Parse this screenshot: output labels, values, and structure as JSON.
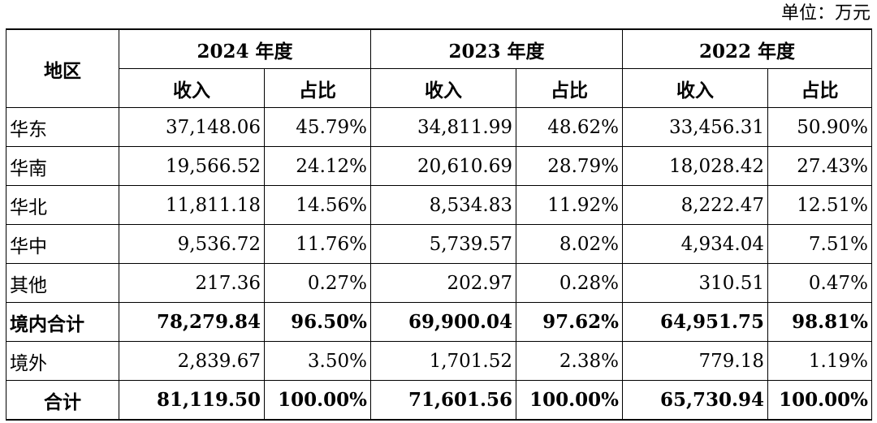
{
  "unit_label": "单位：万元",
  "header": {
    "region": "地区",
    "years": [
      "2024 年度",
      "2023 年度",
      "2022 年度"
    ],
    "revenue": "收入",
    "ratio": "占比"
  },
  "rows": [
    {
      "region": "华东",
      "cells": [
        "37,148.06",
        "45.79%",
        "34,811.99",
        "48.62%",
        "33,456.31",
        "50.90%"
      ]
    },
    {
      "region": "华南",
      "cells": [
        "19,566.52",
        "24.12%",
        "20,610.69",
        "28.79%",
        "18,028.42",
        "27.43%"
      ]
    },
    {
      "region": "华北",
      "cells": [
        "11,811.18",
        "14.56%",
        "8,534.83",
        "11.92%",
        "8,222.47",
        "12.51%"
      ]
    },
    {
      "region": "华中",
      "cells": [
        "9,536.72",
        "11.76%",
        "5,739.57",
        "8.02%",
        "4,934.04",
        "7.51%"
      ]
    },
    {
      "region": "其他",
      "cells": [
        "217.36",
        "0.27%",
        "202.97",
        "0.28%",
        "310.51",
        "0.47%"
      ]
    },
    {
      "region": "境内合计",
      "cells": [
        "78,279.84",
        "96.50%",
        "69,900.04",
        "97.62%",
        "64,951.75",
        "98.81%"
      ]
    },
    {
      "region": "境外",
      "cells": [
        "2,839.67",
        "3.50%",
        "1,701.52",
        "2.38%",
        "779.18",
        "1.19%"
      ]
    },
    {
      "region": "合计",
      "cells": [
        "81,119.50",
        "100.00%",
        "71,601.56",
        "100.00%",
        "65,730.94",
        "100.00%"
      ]
    }
  ]
}
